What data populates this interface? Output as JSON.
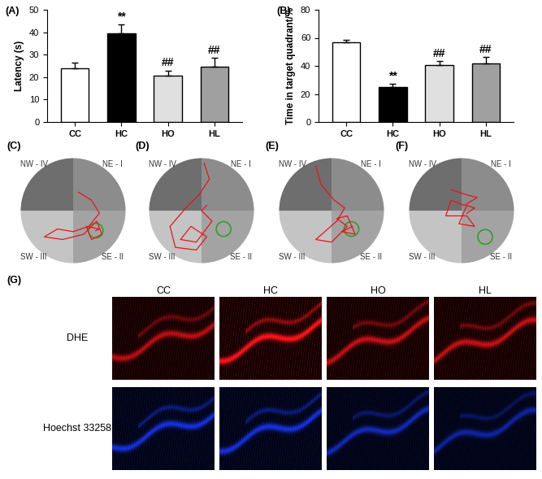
{
  "chart_data": [
    {
      "type": "bar",
      "title": "(A)",
      "categories": [
        "CC",
        "HC",
        "HO",
        "HL"
      ],
      "values": [
        24,
        39.5,
        20.5,
        24.5
      ],
      "errors": [
        2.5,
        4,
        2.5,
        4
      ],
      "colors": [
        "#ffffff",
        "#000000",
        "#e0e0e0",
        "#a0a0a0"
      ],
      "ylabel": "Latency (s)",
      "ylim": [
        0,
        50
      ],
      "yticks": [
        0,
        10,
        20,
        30,
        40,
        50
      ],
      "annotations": [
        {
          "category": "HC",
          "text": "**"
        },
        {
          "category": "HO",
          "text": "##"
        },
        {
          "category": "HL",
          "text": "##"
        }
      ]
    },
    {
      "type": "bar",
      "title": "(B)",
      "categories": [
        "CC",
        "HC",
        "HO",
        "HL"
      ],
      "values": [
        57,
        25,
        40.5,
        41.5
      ],
      "errors": [
        1.5,
        2.5,
        3,
        5
      ],
      "colors": [
        "#ffffff",
        "#000000",
        "#e0e0e0",
        "#a0a0a0"
      ],
      "ylabel": "Time in target quadrant/%",
      "ylim": [
        0,
        80
      ],
      "yticks": [
        0,
        20,
        40,
        60,
        80
      ],
      "annotations": [
        {
          "category": "HC",
          "text": "**"
        },
        {
          "category": "HO",
          "text": "##"
        },
        {
          "category": "HL",
          "text": "##"
        }
      ]
    }
  ],
  "maze": {
    "quadrants": {
      "NW": "NW - IV",
      "NE": "NE - I",
      "SW": "SW - III",
      "SE": "SE - II"
    },
    "panels": [
      {
        "label": "(C)",
        "platform": [
          0.43,
          -0.38
        ],
        "path": [
          [
            0.1,
            0.35
          ],
          [
            0.35,
            0.2
          ],
          [
            0.5,
            -0.05
          ],
          [
            0.3,
            -0.3
          ],
          [
            0.0,
            -0.4
          ],
          [
            -0.3,
            -0.35
          ],
          [
            -0.55,
            -0.5
          ],
          [
            -0.2,
            -0.55
          ],
          [
            0.2,
            -0.45
          ],
          [
            0.45,
            -0.2
          ],
          [
            0.55,
            -0.45
          ],
          [
            0.35,
            -0.55
          ],
          [
            0.25,
            -0.3
          ],
          [
            0.5,
            -0.35
          ],
          [
            0.43,
            -0.38
          ]
        ]
      },
      {
        "label": "(D)",
        "platform": [
          0.42,
          -0.35
        ],
        "path": [
          [
            0.05,
            0.9
          ],
          [
            0.15,
            0.6
          ],
          [
            -0.05,
            0.3
          ],
          [
            -0.3,
            0.05
          ],
          [
            -0.6,
            -0.3
          ],
          [
            -0.5,
            -0.7
          ],
          [
            -0.1,
            -0.75
          ],
          [
            0.1,
            -0.5
          ],
          [
            -0.2,
            -0.3
          ],
          [
            -0.4,
            -0.55
          ],
          [
            -0.1,
            -0.6
          ],
          [
            0.2,
            -0.2
          ],
          [
            0.0,
            0.0
          ],
          [
            0.1,
            0.1
          ]
        ]
      },
      {
        "label": "(E)",
        "platform": [
          0.38,
          -0.35
        ],
        "path": [
          [
            -0.3,
            0.85
          ],
          [
            -0.2,
            0.5
          ],
          [
            0.05,
            0.2
          ],
          [
            0.25,
            0.05
          ],
          [
            0.1,
            -0.2
          ],
          [
            -0.3,
            -0.55
          ],
          [
            0.0,
            -0.6
          ],
          [
            0.3,
            -0.3
          ],
          [
            0.1,
            -0.15
          ],
          [
            0.3,
            -0.1
          ],
          [
            0.45,
            -0.45
          ],
          [
            0.2,
            -0.4
          ],
          [
            0.4,
            -0.3
          ]
        ]
      },
      {
        "label": "(F)",
        "platform": [
          0.45,
          -0.5
        ],
        "path": [
          [
            -0.2,
            0.4
          ],
          [
            0.1,
            0.3
          ],
          [
            0.3,
            0.25
          ],
          [
            0.05,
            0.1
          ],
          [
            -0.2,
            0.2
          ],
          [
            -0.3,
            -0.1
          ],
          [
            0.1,
            -0.1
          ],
          [
            0.25,
            -0.3
          ],
          [
            -0.05,
            -0.25
          ],
          [
            0.1,
            0.1
          ],
          [
            0.25,
            0.05
          ],
          [
            0.1,
            -0.05
          ]
        ]
      }
    ]
  },
  "images": {
    "label": "(G)",
    "columns": [
      "CC",
      "HC",
      "HO",
      "HL"
    ],
    "rows": [
      "DHE",
      "Hoechst 33258"
    ]
  }
}
